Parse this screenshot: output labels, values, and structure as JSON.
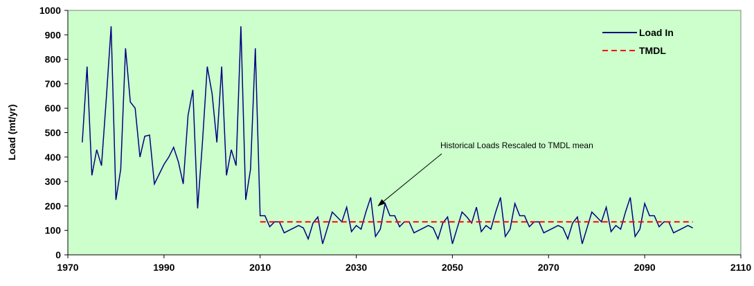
{
  "chart_data": {
    "type": "line",
    "y_label": "Load (mt/yr)",
    "xlim": [
      1970,
      2110
    ],
    "xticks": [
      1970,
      1990,
      2010,
      2030,
      2050,
      2070,
      2090,
      2110
    ],
    "ylim": [
      0,
      1000
    ],
    "yticks": [
      0,
      100,
      200,
      300,
      400,
      500,
      600,
      700,
      800,
      900,
      1000
    ],
    "annotation": {
      "text": "Historical Loads Rescaled to TMDL mean",
      "x": 2034,
      "y": 190
    },
    "legend": "upper right",
    "series": [
      {
        "name": "Load In",
        "color": "#000080",
        "style": "solid",
        "x": [
          1973,
          1974,
          1975,
          1976,
          1977,
          1978,
          1979,
          1980,
          1981,
          1982,
          1983,
          1984,
          1985,
          1986,
          1987,
          1988,
          1989,
          1990,
          1991,
          1992,
          1993,
          1994,
          1995,
          1996,
          1997,
          1998,
          1999,
          2000,
          2001,
          2002,
          2003,
          2004,
          2005,
          2006,
          2007,
          2008,
          2009,
          2010,
          2011,
          2012,
          2013,
          2014,
          2015,
          2016,
          2017,
          2018,
          2019,
          2020,
          2021,
          2022,
          2023,
          2024,
          2025,
          2026,
          2027,
          2028,
          2029,
          2030,
          2031,
          2032,
          2033,
          2034,
          2035,
          2036,
          2037,
          2038,
          2039,
          2040,
          2041,
          2042,
          2043,
          2044,
          2045,
          2046,
          2047,
          2048,
          2049,
          2050,
          2051,
          2052,
          2053,
          2054,
          2055,
          2056,
          2057,
          2058,
          2059,
          2060,
          2061,
          2062,
          2063,
          2064,
          2065,
          2066,
          2067,
          2068,
          2069,
          2070,
          2071,
          2072,
          2073,
          2074,
          2075,
          2076,
          2077,
          2078,
          2079,
          2080,
          2081,
          2082,
          2083,
          2084,
          2085,
          2086,
          2087,
          2088,
          2089,
          2090,
          2091,
          2092,
          2093,
          2094,
          2095,
          2096,
          2097,
          2098,
          2099,
          2100
        ],
        "values": [
          460,
          770,
          325,
          430,
          365,
          640,
          935,
          225,
          350,
          845,
          625,
          600,
          400,
          485,
          490,
          290,
          330,
          370,
          400,
          440,
          380,
          290,
          570,
          675,
          190,
          460,
          770,
          660,
          460,
          770,
          325,
          430,
          365,
          935,
          225,
          350,
          845,
          160,
          160,
          115,
          135,
          135,
          90,
          100,
          110,
          120,
          110,
          65,
          130,
          155,
          45,
          110,
          175,
          155,
          135,
          195,
          95,
          120,
          105,
          175,
          235,
          75,
          105,
          210,
          160,
          160,
          115,
          135,
          135,
          90,
          100,
          110,
          120,
          110,
          65,
          130,
          155,
          45,
          110,
          175,
          155,
          130,
          195,
          95,
          120,
          105,
          175,
          235,
          75,
          105,
          210,
          160,
          160,
          115,
          135,
          135,
          90,
          100,
          110,
          120,
          110,
          65,
          130,
          155,
          45,
          110,
          175,
          155,
          135,
          195,
          95,
          120,
          105,
          175,
          235,
          75,
          105,
          210,
          160,
          160,
          115,
          135,
          135,
          90,
          100,
          110,
          120,
          110
        ]
      },
      {
        "name": "TMDL",
        "color": "#ff0000",
        "style": "dashed",
        "x": [
          2010,
          2100
        ],
        "values": [
          135,
          135
        ]
      }
    ]
  }
}
